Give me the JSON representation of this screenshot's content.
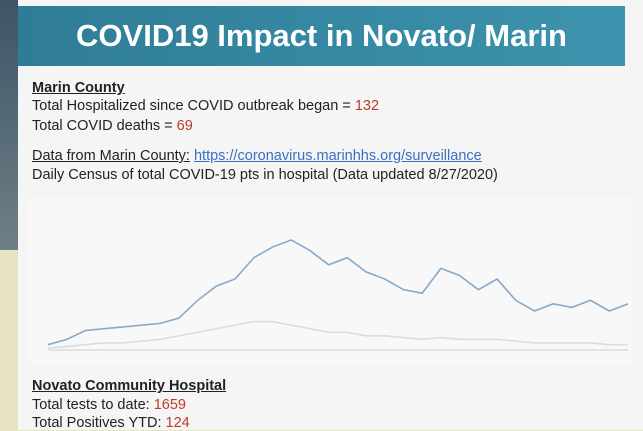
{
  "header": {
    "title": "COVID19 Impact in Novato/ Marin"
  },
  "marin": {
    "heading": "Marin County",
    "hospitalized_label": "Total Hospitalized since COVID outbreak began =",
    "hospitalized": 132,
    "deaths_label": "Total COVID deaths =",
    "deaths": 69,
    "source_label": "Data from Marin County:",
    "source_url": "https://coronavirus.marinhhs.org/surveillance",
    "chart_caption": "Daily Census of total COVID-19 pts in hospital (Data updated 8/27/2020)"
  },
  "chart": {
    "ylim": [
      0,
      40
    ],
    "series": [
      {
        "color": "#8aa8c8",
        "values": [
          1.5,
          3,
          5.5,
          6,
          6.5,
          7,
          7.5,
          9,
          14,
          18,
          20,
          26,
          29,
          31,
          28,
          24,
          26,
          22,
          20,
          17,
          16,
          23,
          21,
          17,
          20,
          14,
          11,
          13,
          12,
          14,
          11,
          13
        ]
      },
      {
        "color": "#dcdcdc",
        "values": [
          0.5,
          1,
          1.5,
          2,
          2,
          2.5,
          3,
          4,
          5,
          6,
          7,
          8,
          8,
          7,
          6,
          5,
          5,
          4,
          4,
          3.5,
          3,
          3.5,
          3,
          3,
          3,
          2.5,
          2,
          2,
          2,
          2,
          1.5,
          1.5
        ]
      }
    ]
  },
  "hospital": {
    "heading": "Novato Community Hospital",
    "tests_label": "Total tests to date:",
    "tests": 1659,
    "positives_label": "Total Positives YTD:",
    "positives": 124
  }
}
